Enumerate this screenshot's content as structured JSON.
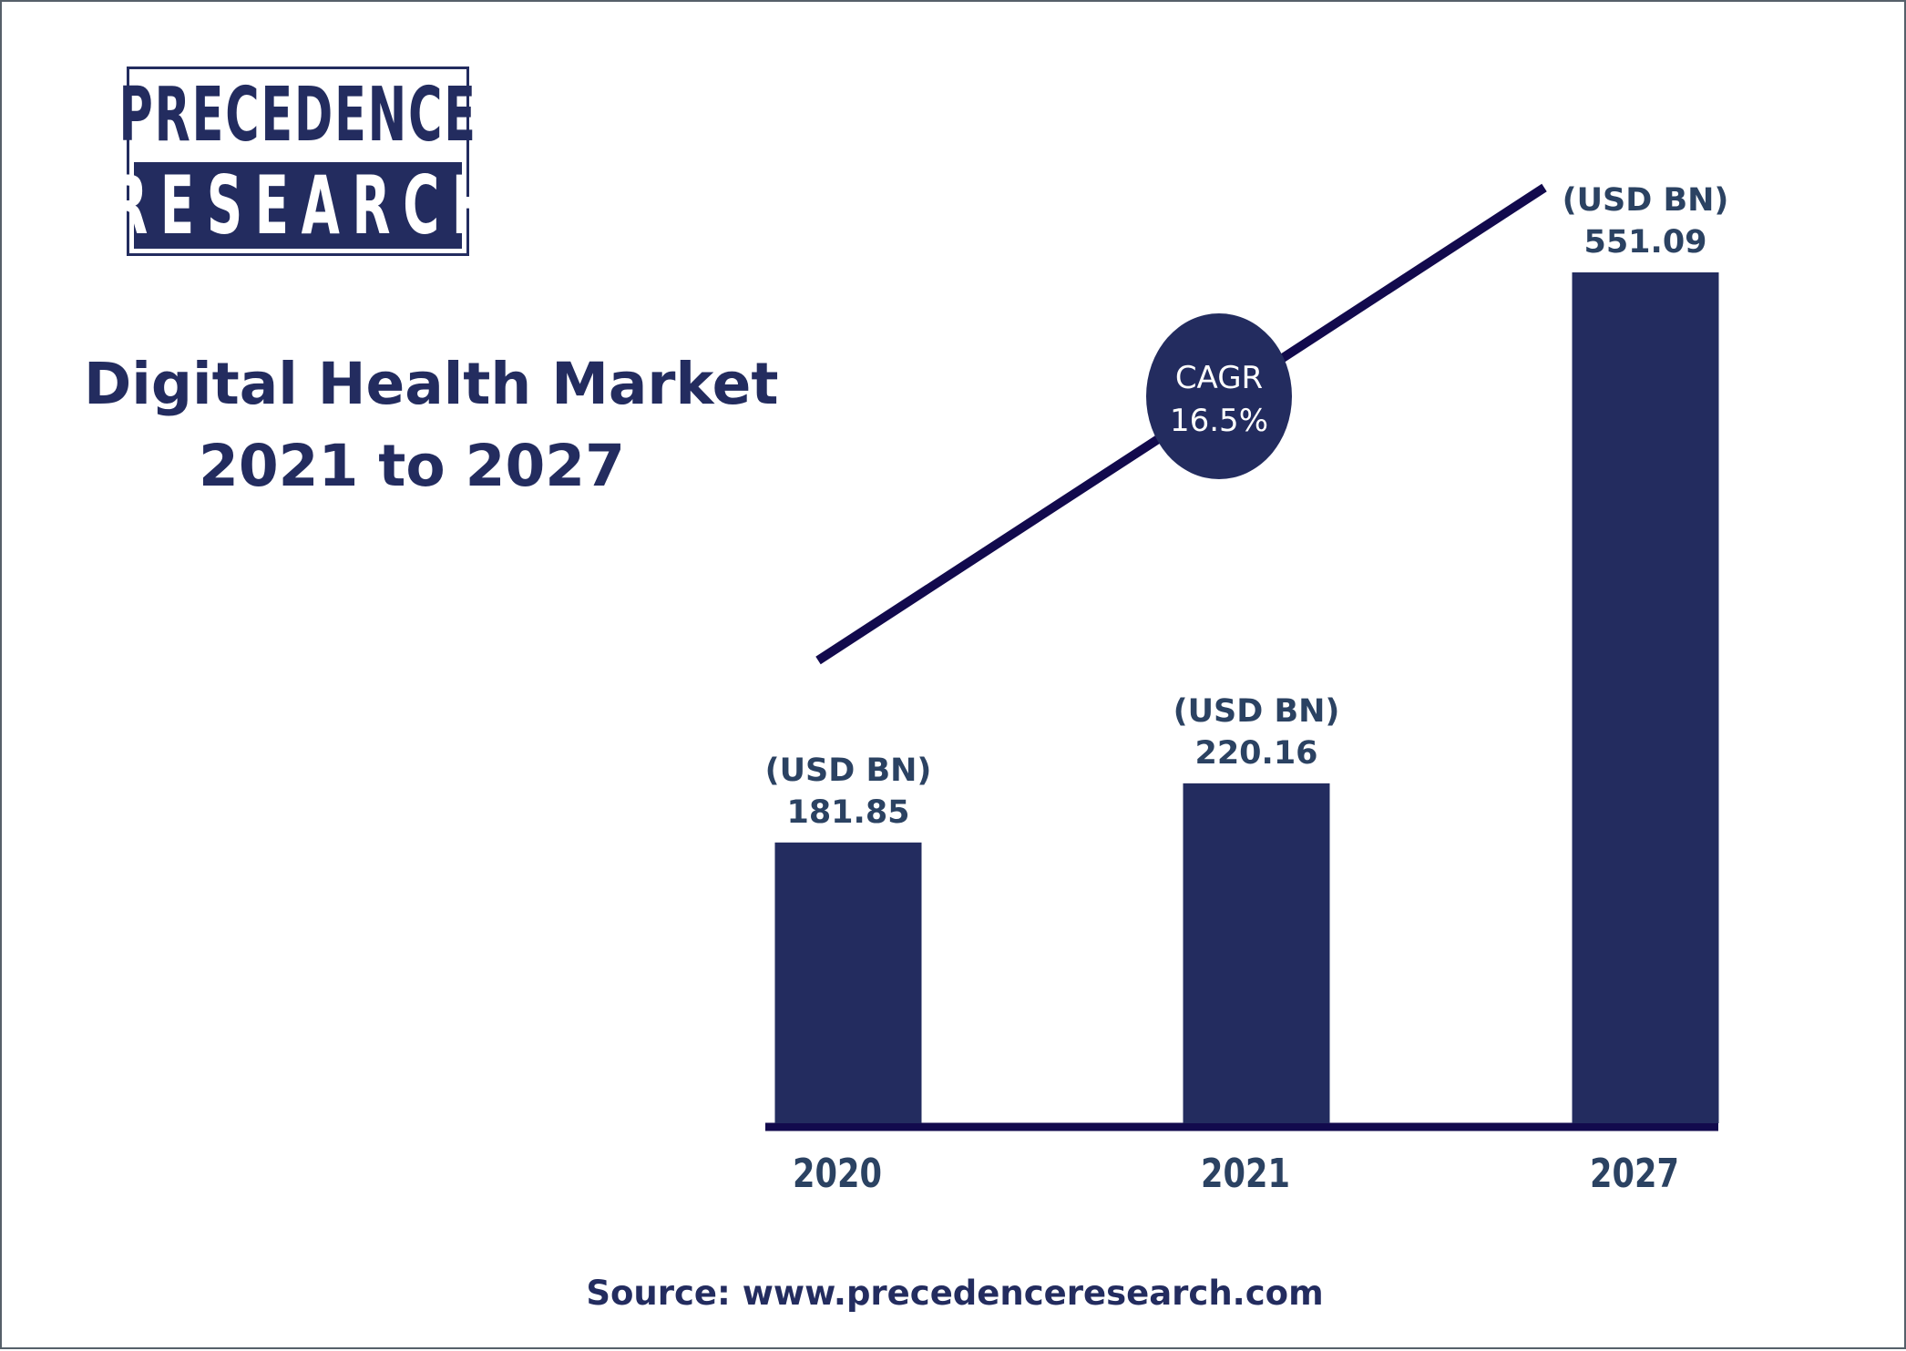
{
  "logo": {
    "top": "PRECEDENCE",
    "bottom": "RESEARCH"
  },
  "title": {
    "line1": "Digital Health Market",
    "line2": "2021 to 2027"
  },
  "cagr": {
    "label": "CAGR",
    "value": "16.5%"
  },
  "source": "Source: www.precedenceresearch.com",
  "colors": {
    "bar": "#232c5f",
    "trend_line": "#120a4d",
    "text": "#232c5f",
    "label_text": "#2b4262"
  },
  "chart_data": {
    "type": "bar",
    "categories": [
      "2020",
      "2021",
      "2027"
    ],
    "series": [
      {
        "values": [
          181.85,
          220.16,
          551.09
        ],
        "labels": [
          "181.85",
          "220.16",
          "551.09"
        ]
      }
    ],
    "unit_label": "(USD BN)",
    "ylim": [
      0,
      551.09
    ],
    "grid": false,
    "legend": "none"
  }
}
